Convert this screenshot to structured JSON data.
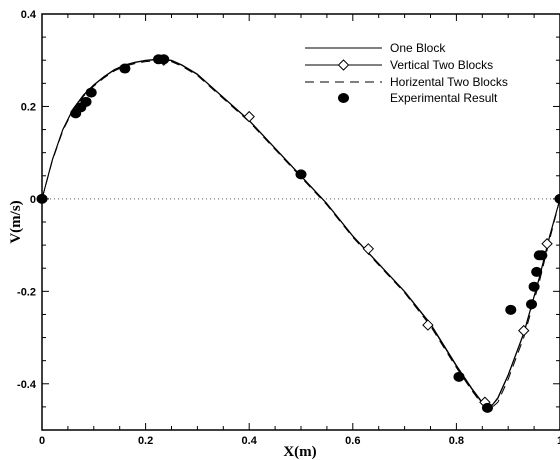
{
  "chart_data": {
    "type": "line",
    "title": "",
    "xlabel": "X(m)",
    "ylabel": "V(m/s)",
    "xlim": [
      0,
      1
    ],
    "ylim": [
      -0.5,
      0.4
    ],
    "xticks": [
      "0",
      "0.2",
      "0.4",
      "0.6",
      "0.8",
      "1"
    ],
    "yticks": [
      "-0.4",
      "-0.2",
      "0",
      "0.2",
      "0.4"
    ],
    "xtick_values": [
      0,
      0.2,
      0.4,
      0.6,
      0.8,
      1.0
    ],
    "ytick_values": [
      -0.4,
      -0.2,
      0,
      0.2,
      0.4
    ],
    "grid": false,
    "legend_position": "top-right",
    "series": [
      {
        "name": "One Block",
        "style": "solid",
        "marker": "none",
        "x": [
          0,
          0.02,
          0.04,
          0.06,
          0.08,
          0.1,
          0.12,
          0.14,
          0.16,
          0.18,
          0.2,
          0.22,
          0.235,
          0.25,
          0.27,
          0.3,
          0.33,
          0.36,
          0.4,
          0.45,
          0.5,
          0.55,
          0.6,
          0.65,
          0.7,
          0.75,
          0.8,
          0.83,
          0.85,
          0.865,
          0.88,
          0.9,
          0.93,
          0.96,
          0.98,
          1.0
        ],
        "y": [
          0,
          0.085,
          0.15,
          0.195,
          0.225,
          0.247,
          0.265,
          0.28,
          0.29,
          0.296,
          0.3,
          0.302,
          0.302,
          0.3,
          0.29,
          0.27,
          0.24,
          0.21,
          0.17,
          0.11,
          0.05,
          -0.01,
          -0.08,
          -0.14,
          -0.2,
          -0.27,
          -0.36,
          -0.41,
          -0.44,
          -0.452,
          -0.43,
          -0.38,
          -0.29,
          -0.17,
          -0.08,
          0
        ]
      },
      {
        "name": "Vertical Two Blocks",
        "style": "solid",
        "marker": "diamond",
        "x": [
          0,
          0.02,
          0.04,
          0.06,
          0.08,
          0.1,
          0.12,
          0.14,
          0.16,
          0.18,
          0.2,
          0.22,
          0.235,
          0.25,
          0.27,
          0.3,
          0.33,
          0.36,
          0.4,
          0.45,
          0.5,
          0.55,
          0.6,
          0.65,
          0.7,
          0.75,
          0.8,
          0.83,
          0.85,
          0.865,
          0.88,
          0.9,
          0.93,
          0.96,
          0.98,
          1.0
        ],
        "y": [
          0,
          0.084,
          0.149,
          0.194,
          0.224,
          0.246,
          0.264,
          0.279,
          0.289,
          0.295,
          0.299,
          0.301,
          0.301,
          0.299,
          0.289,
          0.269,
          0.239,
          0.209,
          0.169,
          0.109,
          0.049,
          -0.011,
          -0.081,
          -0.141,
          -0.201,
          -0.272,
          -0.362,
          -0.412,
          -0.442,
          -0.452,
          -0.432,
          -0.382,
          -0.292,
          -0.172,
          -0.082,
          0
        ],
        "markers_x": [
          0.235,
          0.4,
          0.63,
          0.745,
          0.855,
          0.93,
          0.975
        ],
        "markers_y": [
          0.3,
          0.178,
          -0.108,
          -0.273,
          -0.44,
          -0.285,
          -0.097
        ]
      },
      {
        "name": "Horizental Two Blocks",
        "style": "dashed",
        "marker": "none",
        "x": [
          0,
          0.02,
          0.04,
          0.06,
          0.08,
          0.1,
          0.12,
          0.14,
          0.16,
          0.18,
          0.2,
          0.22,
          0.235,
          0.25,
          0.27,
          0.3,
          0.33,
          0.36,
          0.4,
          0.45,
          0.5,
          0.55,
          0.6,
          0.65,
          0.7,
          0.75,
          0.8,
          0.83,
          0.85,
          0.865,
          0.88,
          0.9,
          0.93,
          0.96,
          0.98,
          1.0
        ],
        "y": [
          0,
          0.083,
          0.147,
          0.192,
          0.222,
          0.244,
          0.262,
          0.277,
          0.287,
          0.293,
          0.297,
          0.299,
          0.299,
          0.297,
          0.287,
          0.267,
          0.237,
          0.207,
          0.167,
          0.107,
          0.047,
          -0.013,
          -0.083,
          -0.143,
          -0.203,
          -0.275,
          -0.365,
          -0.415,
          -0.445,
          -0.455,
          -0.44,
          -0.39,
          -0.3,
          -0.18,
          -0.088,
          0
        ]
      },
      {
        "name": "Experimental Result",
        "style": "none",
        "marker": "filled-circle",
        "x": [
          0,
          0.065,
          0.075,
          0.085,
          0.095,
          0.16,
          0.225,
          0.235,
          0.5,
          0.805,
          0.86,
          0.905,
          0.945,
          0.95,
          0.955,
          0.96,
          0.965,
          1.0
        ],
        "y": [
          0,
          0.185,
          0.198,
          0.21,
          0.23,
          0.282,
          0.302,
          0.302,
          0.053,
          -0.385,
          -0.452,
          -0.24,
          -0.228,
          -0.19,
          -0.158,
          -0.122,
          -0.122,
          0
        ]
      }
    ]
  }
}
